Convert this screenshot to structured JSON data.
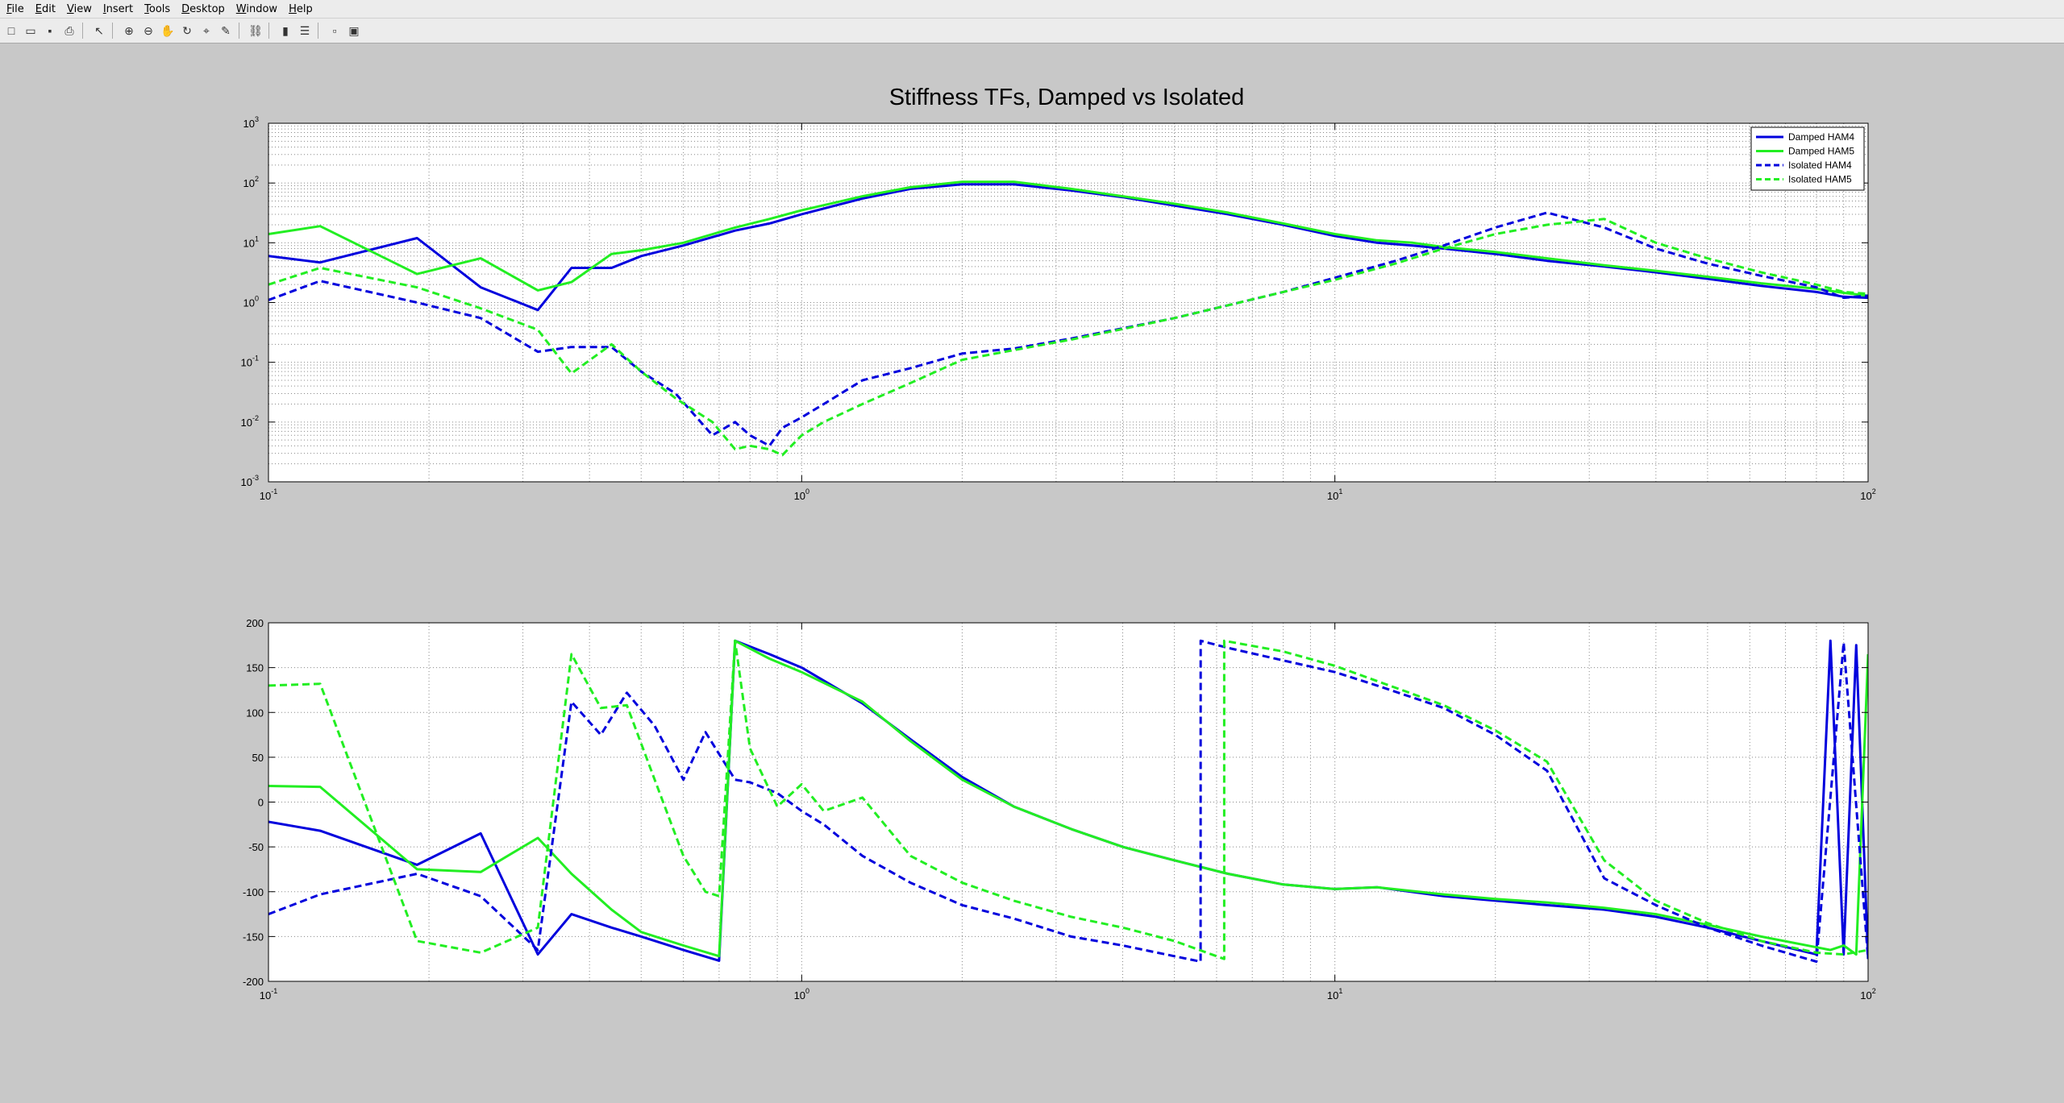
{
  "menu": {
    "items": [
      {
        "label": "File",
        "key": "F",
        "rest": "ile"
      },
      {
        "label": "Edit",
        "key": "E",
        "rest": "dit"
      },
      {
        "label": "View",
        "key": "V",
        "rest": "iew"
      },
      {
        "label": "Insert",
        "key": "I",
        "rest": "nsert"
      },
      {
        "label": "Tools",
        "key": "T",
        "rest": "ools"
      },
      {
        "label": "Desktop",
        "key": "D",
        "rest": "esktop"
      },
      {
        "label": "Window",
        "key": "W",
        "rest": "indow"
      },
      {
        "label": "Help",
        "key": "H",
        "rest": "elp"
      }
    ]
  },
  "toolbar": {
    "icons": [
      "new-figure-icon",
      "open-file-icon",
      "save-icon",
      "print-icon",
      "sep",
      "select-arrow-icon",
      "sep",
      "zoom-in-icon",
      "zoom-out-icon",
      "pan-hand-icon",
      "rotate-3d-icon",
      "data-cursor-icon",
      "brush-icon",
      "sep",
      "link-plot-icon",
      "sep",
      "colorbar-icon",
      "legend-icon",
      "sep",
      "hide-plot-tools-icon",
      "show-plot-tools-icon"
    ],
    "glyphs": [
      "□",
      "▭",
      "▪",
      "⎙",
      "",
      "↖",
      "",
      "⊕",
      "⊖",
      "✋",
      "↻",
      "⌖",
      "✎",
      "",
      "⛓",
      "",
      "▮",
      "☰",
      "",
      "▫",
      "▣"
    ]
  },
  "chart_data": [
    {
      "type": "line",
      "title": "Stiffness TFs, Damped vs Isolated",
      "xscale": "log",
      "yscale": "log",
      "xlim": [
        0.1,
        100
      ],
      "ylim": [
        0.001,
        1000
      ],
      "xticks": [
        {
          "v": 0.1,
          "base": "10",
          "exp": "-1"
        },
        {
          "v": 1,
          "base": "10",
          "exp": "0"
        },
        {
          "v": 10,
          "base": "10",
          "exp": "1"
        },
        {
          "v": 100,
          "base": "10",
          "exp": "2"
        }
      ],
      "yticks": [
        {
          "v": 0.001,
          "base": "10",
          "exp": "-3"
        },
        {
          "v": 0.01,
          "base": "10",
          "exp": "-2"
        },
        {
          "v": 0.1,
          "base": "10",
          "exp": "-1"
        },
        {
          "v": 1,
          "base": "10",
          "exp": "0"
        },
        {
          "v": 10,
          "base": "10",
          "exp": "1"
        },
        {
          "v": 100,
          "base": "10",
          "exp": "2"
        },
        {
          "v": 1000,
          "base": "10",
          "exp": "3"
        }
      ],
      "grid": true,
      "legend": {
        "position": "top-right"
      },
      "series": [
        {
          "name": "Damped HAM4",
          "color": "#0000dd",
          "dash": false,
          "x": [
            0.1,
            0.125,
            0.19,
            0.25,
            0.32,
            0.37,
            0.44,
            0.5,
            0.6,
            0.75,
            0.87,
            1.0,
            1.3,
            1.6,
            2.0,
            2.5,
            3.2,
            4.0,
            5.0,
            6.3,
            8.0,
            10.0,
            12.0,
            14.0,
            16.0,
            20.0,
            25.0,
            32.0,
            40.0,
            50.0,
            63.0,
            80.0,
            90.0,
            100.0
          ],
          "y": [
            6,
            4.7,
            12,
            1.8,
            0.75,
            3.8,
            3.8,
            6,
            9,
            16,
            21,
            30,
            55,
            80,
            95,
            95,
            75,
            58,
            42,
            30,
            20,
            13,
            10,
            9,
            8,
            6.5,
            5,
            4,
            3.2,
            2.5,
            1.9,
            1.5,
            1.25,
            1.2
          ]
        },
        {
          "name": "Damped HAM5",
          "color": "#22ee22",
          "dash": false,
          "x": [
            0.1,
            0.125,
            0.19,
            0.25,
            0.32,
            0.37,
            0.44,
            0.5,
            0.6,
            0.75,
            0.87,
            1.0,
            1.3,
            1.6,
            2.0,
            2.5,
            3.2,
            4.0,
            5.0,
            6.3,
            8.0,
            10.0,
            12.0,
            14.0,
            16.0,
            20.0,
            25.0,
            32.0,
            40.0,
            50.0,
            63.0,
            80.0,
            90.0,
            100.0
          ],
          "y": [
            14,
            19,
            3,
            5.5,
            1.6,
            2.2,
            6.5,
            7.5,
            10,
            18,
            25,
            35,
            60,
            85,
            105,
            105,
            80,
            60,
            45,
            32,
            21,
            14,
            11,
            10,
            8.5,
            7,
            5.5,
            4.2,
            3.4,
            2.7,
            2.1,
            1.7,
            1.45,
            1.3
          ]
        },
        {
          "name": "Isolated HAM4",
          "color": "#0000dd",
          "dash": true,
          "x": [
            0.1,
            0.125,
            0.19,
            0.25,
            0.32,
            0.37,
            0.44,
            0.5,
            0.58,
            0.68,
            0.75,
            0.8,
            0.87,
            0.92,
            1.0,
            1.1,
            1.3,
            1.6,
            2.0,
            2.5,
            3.2,
            4.0,
            5.0,
            6.3,
            8.0,
            10.0,
            13.0,
            16.0,
            20.0,
            25.0,
            32.0,
            40.0,
            50.0,
            63.0,
            80.0,
            90.0,
            100.0
          ],
          "y": [
            1.1,
            2.3,
            1.0,
            0.55,
            0.15,
            0.18,
            0.18,
            0.07,
            0.03,
            0.006,
            0.01,
            0.006,
            0.004,
            0.008,
            0.012,
            0.02,
            0.05,
            0.08,
            0.14,
            0.17,
            0.25,
            0.37,
            0.55,
            0.9,
            1.5,
            2.6,
            5,
            9,
            18,
            32,
            18,
            8,
            4.5,
            2.8,
            1.8,
            1.2,
            1.3
          ]
        },
        {
          "name": "Isolated HAM5",
          "color": "#22ee22",
          "dash": true,
          "x": [
            0.1,
            0.125,
            0.19,
            0.25,
            0.32,
            0.37,
            0.44,
            0.5,
            0.58,
            0.68,
            0.75,
            0.8,
            0.87,
            0.92,
            1.0,
            1.1,
            1.3,
            1.6,
            2.0,
            2.5,
            3.2,
            4.0,
            5.0,
            6.3,
            8.0,
            10.0,
            13.0,
            16.0,
            20.0,
            25.0,
            32.0,
            40.0,
            50.0,
            63.0,
            80.0,
            90.0,
            100.0
          ],
          "y": [
            2,
            3.8,
            1.8,
            0.8,
            0.35,
            0.065,
            0.2,
            0.07,
            0.025,
            0.01,
            0.0035,
            0.004,
            0.0035,
            0.0028,
            0.006,
            0.01,
            0.02,
            0.045,
            0.11,
            0.16,
            0.24,
            0.36,
            0.55,
            0.9,
            1.5,
            2.4,
            4.5,
            8,
            14,
            20,
            25,
            10,
            5.5,
            3.2,
            2.0,
            1.5,
            1.4
          ]
        }
      ]
    },
    {
      "type": "line",
      "title": "",
      "xscale": "log",
      "yscale": "linear",
      "xlim": [
        0.1,
        100
      ],
      "ylim": [
        -200,
        200
      ],
      "xticks": [
        {
          "v": 0.1,
          "base": "10",
          "exp": "-1"
        },
        {
          "v": 1,
          "base": "10",
          "exp": "0"
        },
        {
          "v": 10,
          "base": "10",
          "exp": "1"
        },
        {
          "v": 100,
          "base": "10",
          "exp": "2"
        }
      ],
      "yticks": [
        {
          "v": -200,
          "label": "-200"
        },
        {
          "v": -150,
          "label": "-150"
        },
        {
          "v": -100,
          "label": "-100"
        },
        {
          "v": -50,
          "label": "-50"
        },
        {
          "v": 0,
          "label": "0"
        },
        {
          "v": 50,
          "label": "50"
        },
        {
          "v": 100,
          "label": "100"
        },
        {
          "v": 150,
          "label": "150"
        },
        {
          "v": 200,
          "label": "200"
        }
      ],
      "grid": true,
      "series": [
        {
          "name": "Damped HAM4",
          "color": "#0000dd",
          "dash": false,
          "x": [
            0.1,
            0.125,
            0.19,
            0.25,
            0.32,
            0.37,
            0.44,
            0.5,
            0.6,
            0.7,
            0.75,
            0.87,
            1.0,
            1.3,
            1.6,
            2.0,
            2.5,
            3.2,
            4.0,
            5.0,
            6.3,
            8.0,
            10.0,
            12.0,
            16.0,
            20.0,
            25.0,
            32.0,
            40.0,
            50.0,
            63.0,
            80.0,
            85.0,
            90.0,
            95.0,
            100.0
          ],
          "y": [
            -22,
            -32,
            -70,
            -35,
            -170,
            -125,
            -140,
            -150,
            -165,
            -177,
            180,
            165,
            150,
            110,
            70,
            28,
            -5,
            -30,
            -50,
            -65,
            -80,
            -92,
            -97,
            -95,
            -105,
            -110,
            -115,
            -120,
            -128,
            -140,
            -155,
            -170,
            180,
            -170,
            175,
            -175
          ]
        },
        {
          "name": "Damped HAM5",
          "color": "#22ee22",
          "dash": false,
          "x": [
            0.1,
            0.125,
            0.19,
            0.25,
            0.32,
            0.37,
            0.44,
            0.5,
            0.6,
            0.7,
            0.75,
            0.87,
            1.0,
            1.3,
            1.6,
            2.0,
            2.5,
            3.2,
            4.0,
            5.0,
            6.3,
            8.0,
            10.0,
            12.0,
            16.0,
            20.0,
            25.0,
            32.0,
            40.0,
            50.0,
            63.0,
            80.0,
            85.0,
            90.0,
            95.0,
            100.0
          ],
          "y": [
            18,
            17,
            -75,
            -78,
            -40,
            -80,
            -120,
            -145,
            -160,
            -172,
            180,
            160,
            145,
            112,
            68,
            25,
            -5,
            -30,
            -50,
            -65,
            -80,
            -92,
            -97,
            -95,
            -103,
            -108,
            -112,
            -118,
            -125,
            -137,
            -150,
            -162,
            -165,
            -160,
            -170,
            165
          ]
        },
        {
          "name": "Isolated HAM4",
          "color": "#0000dd",
          "dash": true,
          "x": [
            0.1,
            0.125,
            0.19,
            0.25,
            0.32,
            0.37,
            0.42,
            0.47,
            0.53,
            0.6,
            0.66,
            0.75,
            0.8,
            0.9,
            1.0,
            1.1,
            1.3,
            1.6,
            2.0,
            2.5,
            3.2,
            4.0,
            5.0,
            5.6,
            5.601,
            6.3,
            8.0,
            10.0,
            12.0,
            16.0,
            20.0,
            25.0,
            32.0,
            40.0,
            50.0,
            63.0,
            80.0,
            90.0,
            100.0
          ],
          "y": [
            -125,
            -103,
            -80,
            -105,
            -165,
            112,
            75,
            122,
            85,
            25,
            78,
            25,
            22,
            10,
            -10,
            -25,
            -60,
            -90,
            -115,
            -130,
            -150,
            -160,
            -172,
            -178,
            180,
            172,
            158,
            145,
            130,
            105,
            75,
            35,
            -85,
            -115,
            -140,
            -160,
            -178,
            178,
            -175
          ]
        },
        {
          "name": "Isolated HAM5",
          "color": "#22ee22",
          "dash": true,
          "x": [
            0.1,
            0.125,
            0.19,
            0.25,
            0.32,
            0.37,
            0.42,
            0.47,
            0.53,
            0.6,
            0.66,
            0.7,
            0.75,
            0.8,
            0.9,
            1.0,
            1.1,
            1.3,
            1.6,
            2.0,
            2.5,
            3.2,
            4.0,
            5.0,
            6.2,
            6.201,
            8.0,
            10.0,
            12.0,
            16.0,
            20.0,
            25.0,
            32.0,
            40.0,
            50.0,
            63.0,
            80.0,
            90.0,
            100.0
          ],
          "y": [
            130,
            132,
            -155,
            -168,
            -140,
            165,
            105,
            108,
            25,
            -60,
            -100,
            -105,
            180,
            60,
            -5,
            20,
            -10,
            5,
            -60,
            -90,
            -110,
            -128,
            -140,
            -155,
            -175,
            180,
            168,
            152,
            135,
            108,
            80,
            45,
            -65,
            -110,
            -135,
            -155,
            -168,
            -170,
            -165
          ]
        }
      ]
    }
  ]
}
